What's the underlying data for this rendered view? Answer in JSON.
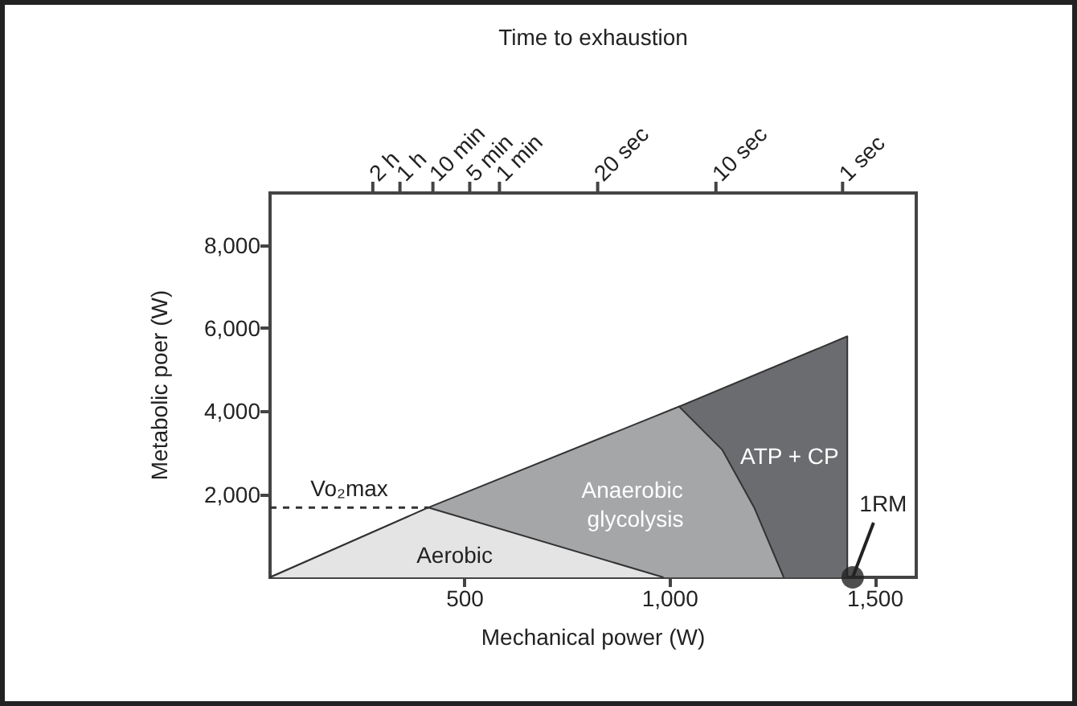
{
  "chart_data": {
    "type": "area",
    "xlabel": "Mechanical power (W)",
    "ylabel": "Metabolic poer (W)",
    "x2label": "Time to exhaustion",
    "xlim": [
      25,
      1600
    ],
    "xticks": [
      {
        "value": 500,
        "label": "500"
      },
      {
        "value": 1000,
        "label": "1,000"
      },
      {
        "value": 1500,
        "label": "1,500"
      }
    ],
    "ylim": [
      0,
      9250
    ],
    "yticks": [
      {
        "value": 2000,
        "label": "2,000"
      },
      {
        "value": 4000,
        "label": "4,000"
      },
      {
        "value": 6000,
        "label": "6,000"
      },
      {
        "value": 8000,
        "label": "8,000"
      }
    ],
    "grid": false,
    "legend": false,
    "marker": "none",
    "series": [
      {
        "name": "ATP + CP",
        "color": "#6b6c6f",
        "x": [
          25,
          1432,
          1432
        ],
        "values": [
          0,
          5800,
          0
        ]
      },
      {
        "name": "Anaerobic glycolysis",
        "color": "#a5a6a8",
        "x": [
          25,
          411,
          1022,
          1127,
          1205,
          1277
        ],
        "values": [
          0,
          1680,
          4110,
          3070,
          1680,
          0
        ]
      },
      {
        "name": "Aerobic",
        "color": "#e4e4e4",
        "x": [
          25,
          411,
          984
        ],
        "values": [
          0,
          1680,
          0
        ]
      },
      {
        "name": "Vo₂max",
        "type": "line",
        "color": "#333333",
        "line_style": "dashed",
        "x": [
          25,
          411
        ],
        "values": [
          1680,
          1680
        ]
      },
      {
        "name": "1RM",
        "type": "scatter",
        "color": "#222222",
        "marker": "circle",
        "x": [
          1445
        ],
        "values": [
          0
        ]
      }
    ],
    "annotations": [
      "2 h",
      "1 h",
      "10 min",
      "5 min",
      "1 min",
      "20 sec",
      "10 sec",
      "1 sec"
    ]
  }
}
